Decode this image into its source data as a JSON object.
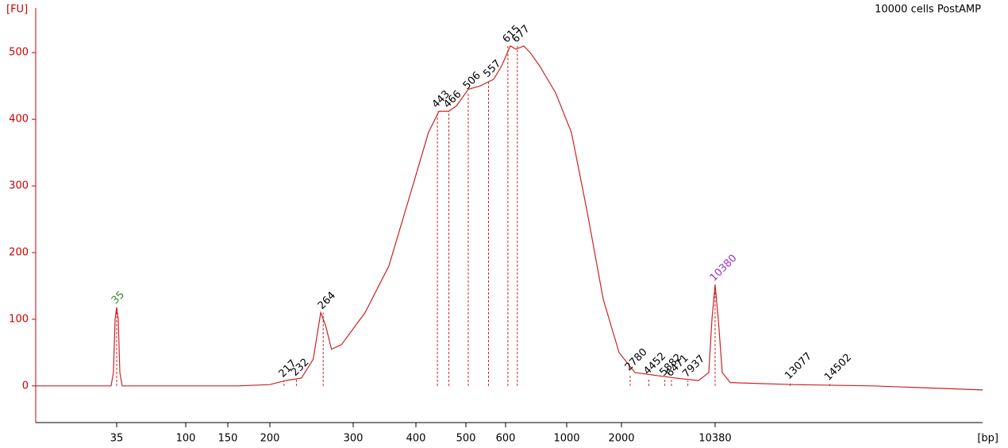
{
  "chart_data": {
    "type": "line",
    "title": "10000 cells PostAMP",
    "y_label": "[FU]",
    "x_label": "[bp]",
    "color": "#cc2222",
    "axis_color": "#cc0000",
    "xlim": [
      25,
      20000
    ],
    "xticks": [
      35,
      100,
      150,
      200,
      300,
      400,
      500,
      600,
      1000,
      2000,
      10380
    ],
    "ylim": [
      -55,
      567
    ],
    "yticks": [
      0,
      100,
      200,
      300,
      400,
      500
    ],
    "x": [
      25,
      30.4,
      34.3,
      34.6,
      34.8,
      35,
      36.5,
      38,
      40.2,
      89.5,
      162.3,
      200,
      219,
      238,
      252,
      261,
      267,
      274,
      286,
      319,
      357,
      395,
      425,
      446,
      465,
      481,
      506,
      536,
      570,
      590,
      631,
      667,
      719,
      761,
      823,
      927,
      1087,
      1377,
      1667,
      1957,
      3207,
      6757,
      8887,
      9810,
      10094,
      10380,
      10494,
      10637,
      10922,
      13202,
      16052,
      20000
    ],
    "values": [
      0,
      0,
      0,
      20,
      100,
      118,
      100,
      20,
      0,
      0,
      0,
      2,
      8,
      12,
      40,
      110,
      90,
      55,
      62,
      110,
      180,
      300,
      380,
      412,
      412,
      420,
      445,
      450,
      460,
      480,
      510,
      505,
      510,
      500,
      480,
      440,
      380,
      260,
      130,
      50,
      20,
      12,
      8,
      20,
      100,
      152,
      100,
      20,
      5,
      2,
      0,
      -6
    ],
    "peak_bp": [
      35,
      217,
      232,
      264,
      443,
      466,
      506,
      557,
      615,
      677,
      2780,
      4452,
      5882,
      6471,
      7937,
      10380,
      13077,
      14502
    ],
    "peak_fu": [
      118,
      8,
      10,
      110,
      412,
      412,
      440,
      458,
      510,
      510,
      18,
      12,
      10,
      9,
      8,
      152,
      5,
      3
    ],
    "peak_colors": [
      "#2e8b2e",
      "#000000",
      "#000000",
      "#000000",
      "#000000",
      "#000000",
      "#000000",
      "#000000",
      "#000000",
      "#000000",
      "#000000",
      "#000000",
      "#000000",
      "#000000",
      "#000000",
      "#9932cc",
      "#000000",
      "#000000"
    ]
  }
}
